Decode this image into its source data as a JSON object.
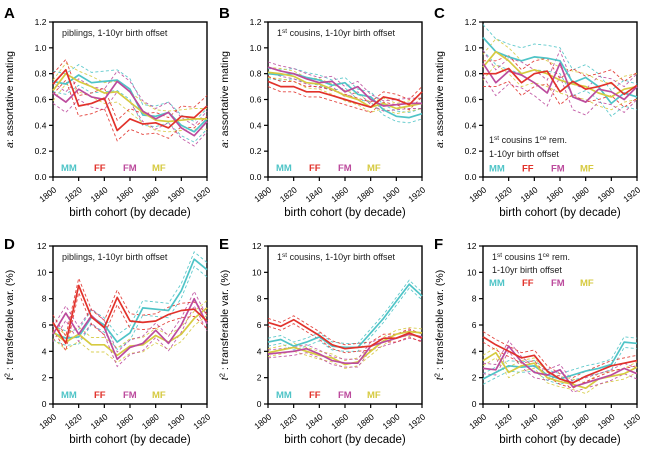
{
  "figure": {
    "background": "#ffffff",
    "axis_color": "#000000",
    "x_label": "birth cohort (by decade)",
    "x_values": [
      1800,
      1810,
      1820,
      1830,
      1840,
      1850,
      1860,
      1870,
      1880,
      1890,
      1900,
      1910,
      1920
    ],
    "x_tick_labels": [
      "1800",
      "1820",
      "1840",
      "1860",
      "1880",
      "1900",
      "1920"
    ],
    "legend_labels": [
      "MM",
      "FF",
      "FM",
      "MF"
    ],
    "series_colors": {
      "MM": "#4FC4C7",
      "FF": "#E1322B",
      "FM": "#BC4B9D",
      "MF": "#D6CA40"
    }
  },
  "chart_data": [
    {
      "type": "line",
      "panel": "A",
      "title_lines": [
        [
          {
            "t": "piblings, 1-10yr birth offset"
          }
        ]
      ],
      "title_position": "top",
      "legend_position": "bottom",
      "ylabel_segments": [
        {
          "t": "a",
          "italic": true
        },
        {
          "t": ": assortative mating"
        }
      ],
      "xlabel": "birth cohort (by decade)",
      "ylim": [
        0,
        1.2
      ],
      "yticks": [
        0,
        0.2,
        0.4,
        0.6,
        0.8,
        1.0,
        1.2
      ],
      "ytick_labels": [
        "0.0",
        "0.2",
        "0.4",
        "0.6",
        "0.8",
        "1.0",
        "1.2"
      ],
      "ci_halfwidth": 0.08,
      "series": [
        {
          "name": "MM",
          "values": [
            0.74,
            0.72,
            0.79,
            0.73,
            0.74,
            0.75,
            0.68,
            0.48,
            0.47,
            0.5,
            0.4,
            0.35,
            0.45
          ]
        },
        {
          "name": "FF",
          "values": [
            0.72,
            0.83,
            0.55,
            0.57,
            0.61,
            0.36,
            0.45,
            0.41,
            0.42,
            0.38,
            0.47,
            0.46,
            0.55
          ]
        },
        {
          "name": "FM",
          "values": [
            0.65,
            0.58,
            0.68,
            0.62,
            0.6,
            0.74,
            0.66,
            0.51,
            0.45,
            0.5,
            0.38,
            0.32,
            0.43
          ]
        },
        {
          "name": "MF",
          "values": [
            0.67,
            0.8,
            0.74,
            0.7,
            0.65,
            0.66,
            0.58,
            0.5,
            0.44,
            0.43,
            0.44,
            0.45,
            0.45
          ]
        }
      ]
    },
    {
      "type": "line",
      "panel": "B",
      "title_lines": [
        [
          {
            "t": "1"
          },
          {
            "t": "st",
            "sup": true
          },
          {
            "t": " cousins, 1-10yr birth offset"
          }
        ]
      ],
      "title_position": "top",
      "legend_position": "bottom",
      "ylabel_segments": [
        {
          "t": "a",
          "italic": true
        },
        {
          "t": ": assortative mating"
        }
      ],
      "xlabel": "birth cohort (by decade)",
      "ylim": [
        0,
        1.2
      ],
      "yticks": [
        0,
        0.2,
        0.4,
        0.6,
        0.8,
        1.0,
        1.2
      ],
      "ytick_labels": [
        "0.0",
        "0.2",
        "0.4",
        "0.6",
        "0.8",
        "1.0",
        "1.2"
      ],
      "ci_halfwidth": 0.04,
      "series": [
        {
          "name": "MM",
          "values": [
            0.8,
            0.79,
            0.8,
            0.77,
            0.75,
            0.71,
            0.73,
            0.64,
            0.62,
            0.52,
            0.47,
            0.46,
            0.49
          ]
        },
        {
          "name": "FF",
          "values": [
            0.74,
            0.7,
            0.7,
            0.66,
            0.66,
            0.63,
            0.6,
            0.57,
            0.54,
            0.62,
            0.6,
            0.56,
            0.66
          ]
        },
        {
          "name": "FM",
          "values": [
            0.85,
            0.82,
            0.8,
            0.76,
            0.73,
            0.74,
            0.66,
            0.7,
            0.6,
            0.55,
            0.56,
            0.57,
            0.57
          ]
        },
        {
          "name": "MF",
          "values": [
            0.81,
            0.8,
            0.78,
            0.73,
            0.72,
            0.68,
            0.63,
            0.6,
            0.54,
            0.57,
            0.53,
            0.55,
            0.57
          ]
        }
      ]
    },
    {
      "type": "line",
      "panel": "C",
      "title_lines": [
        [
          {
            "t": "1"
          },
          {
            "t": "st",
            "sup": true
          },
          {
            "t": " cousins 1"
          },
          {
            "t": "ce",
            "sup": true
          },
          {
            "t": " rem."
          }
        ],
        [
          {
            "t": "1-10yr birth offset"
          }
        ]
      ],
      "title_position": "bottom",
      "legend_position": "bottom",
      "ylabel_segments": [
        {
          "t": "a",
          "italic": true
        },
        {
          "t": ": assortative mating"
        }
      ],
      "xlabel": "birth cohort (by decade)",
      "ylim": [
        0,
        1.2
      ],
      "yticks": [
        0,
        0.2,
        0.4,
        0.6,
        0.8,
        1.0,
        1.2
      ],
      "ytick_labels": [
        "0.0",
        "0.2",
        "0.4",
        "0.6",
        "0.8",
        "1.0",
        "1.2"
      ],
      "ci_halfwidth": 0.1,
      "series": [
        {
          "name": "MM",
          "values": [
            1.08,
            0.97,
            0.93,
            0.9,
            0.93,
            0.92,
            0.9,
            0.73,
            0.77,
            0.7,
            0.57,
            0.65,
            0.62
          ]
        },
        {
          "name": "FF",
          "values": [
            0.8,
            0.8,
            0.84,
            0.73,
            0.8,
            0.82,
            0.66,
            0.74,
            0.68,
            0.7,
            0.73,
            0.64,
            0.71
          ]
        },
        {
          "name": "FM",
          "values": [
            0.88,
            0.73,
            0.82,
            0.79,
            0.73,
            0.65,
            0.88,
            0.62,
            0.58,
            0.68,
            0.66,
            0.6,
            0.7
          ]
        },
        {
          "name": "MF",
          "values": [
            0.85,
            0.97,
            0.9,
            0.8,
            0.83,
            0.8,
            0.75,
            0.72,
            0.7,
            0.65,
            0.62,
            0.68,
            0.7
          ]
        }
      ]
    },
    {
      "type": "line",
      "panel": "D",
      "title_lines": [
        [
          {
            "t": "piblings, 1-10yr birth offset"
          }
        ]
      ],
      "title_position": "top",
      "legend_position": "bottom",
      "ylabel_segments": [
        {
          "t": "t",
          "italic": true
        },
        {
          "t": "2",
          "sup": true
        },
        {
          "t": " : transferable var. (%)"
        }
      ],
      "xlabel": "birth cohort (by decade)",
      "ylim": [
        0,
        12
      ],
      "yticks": [
        0,
        2,
        4,
        6,
        8,
        10,
        12
      ],
      "ytick_labels": [
        "0",
        "2",
        "4",
        "6",
        "8",
        "10",
        "12"
      ],
      "ci_halfwidth": 0.55,
      "series": [
        {
          "name": "MM",
          "values": [
            5.4,
            5.0,
            5.1,
            6.6,
            6.0,
            4.7,
            5.4,
            7.3,
            7.2,
            7.1,
            8.6,
            11.0,
            10.2
          ]
        },
        {
          "name": "FF",
          "values": [
            6.2,
            4.6,
            9.0,
            6.6,
            5.8,
            8.1,
            6.3,
            6.2,
            6.3,
            6.8,
            7.1,
            7.2,
            6.3
          ]
        },
        {
          "name": "FM",
          "values": [
            5.3,
            6.9,
            5.3,
            6.7,
            5.8,
            3.4,
            4.3,
            4.6,
            5.6,
            4.6,
            6.0,
            8.0,
            6.1
          ]
        },
        {
          "name": "MF",
          "values": [
            5.5,
            4.7,
            5.3,
            4.5,
            4.5,
            3.7,
            4.4,
            4.5,
            5.2,
            4.7,
            5.3,
            6.5,
            7.3
          ]
        }
      ]
    },
    {
      "type": "line",
      "panel": "E",
      "title_lines": [
        [
          {
            "t": "1"
          },
          {
            "t": "st",
            "sup": true
          },
          {
            "t": " cousins, 1-10yr birth offset"
          }
        ]
      ],
      "title_position": "top",
      "legend_position": "bottom",
      "ylabel_segments": [
        {
          "t": "t",
          "italic": true
        },
        {
          "t": "2",
          "sup": true
        },
        {
          "t": " : transferable var. (%)"
        }
      ],
      "xlabel": "birth cohort (by decade)",
      "ylim": [
        0,
        12
      ],
      "yticks": [
        0,
        2,
        4,
        6,
        8,
        10,
        12
      ],
      "ytick_labels": [
        "0",
        "2",
        "4",
        "6",
        "8",
        "10",
        "12"
      ],
      "ci_halfwidth": 0.3,
      "series": [
        {
          "name": "MM",
          "values": [
            4.7,
            4.9,
            4.4,
            4.7,
            5.1,
            4.4,
            4.3,
            4.3,
            5.4,
            6.5,
            7.8,
            9.1,
            8.2
          ]
        },
        {
          "name": "FF",
          "values": [
            6.2,
            5.9,
            6.4,
            5.8,
            5.2,
            4.5,
            4.2,
            4.3,
            4.4,
            5.0,
            5.0,
            5.4,
            5.0
          ]
        },
        {
          "name": "FM",
          "values": [
            3.8,
            3.9,
            4.0,
            4.2,
            3.8,
            3.3,
            3.1,
            3.1,
            4.4,
            4.7,
            5.0,
            5.3,
            5.1
          ]
        },
        {
          "name": "MF",
          "values": [
            3.9,
            4.1,
            4.3,
            4.0,
            3.7,
            3.5,
            3.0,
            3.2,
            4.0,
            4.8,
            5.3,
            5.5,
            5.4
          ]
        }
      ]
    },
    {
      "type": "line",
      "panel": "F",
      "title_lines": [
        [
          {
            "t": "1"
          },
          {
            "t": "st",
            "sup": true
          },
          {
            "t": " cousins 1"
          },
          {
            "t": "ce",
            "sup": true
          },
          {
            "t": " rem."
          }
        ],
        [
          {
            "t": "1-10yr birth offset"
          }
        ]
      ],
      "title_position": "top",
      "legend_position": "after-title",
      "ylabel_segments": [
        {
          "t": "t",
          "italic": true
        },
        {
          "t": "2",
          "sup": true
        },
        {
          "t": " : transferable var. (%)"
        }
      ],
      "xlabel": "birth cohort (by decade)",
      "ylim": [
        0,
        12
      ],
      "yticks": [
        0,
        2,
        4,
        6,
        8,
        10,
        12
      ],
      "ytick_labels": [
        "0",
        "2",
        "4",
        "6",
        "8",
        "10",
        "12"
      ],
      "ci_halfwidth": 0.4,
      "series": [
        {
          "name": "MM",
          "values": [
            1.9,
            2.4,
            2.9,
            2.8,
            2.9,
            2.2,
            1.9,
            2.2,
            2.5,
            2.7,
            3.0,
            4.7,
            4.6
          ]
        },
        {
          "name": "FF",
          "values": [
            5.1,
            4.5,
            4.0,
            3.5,
            3.7,
            2.5,
            1.9,
            1.6,
            2.1,
            2.5,
            2.9,
            3.1,
            3.3
          ]
        },
        {
          "name": "FM",
          "values": [
            2.7,
            2.6,
            4.4,
            3.2,
            2.4,
            2.2,
            2.6,
            1.3,
            1.6,
            1.9,
            2.2,
            2.7,
            2.3
          ]
        },
        {
          "name": "MF",
          "values": [
            3.3,
            3.9,
            2.4,
            2.9,
            3.1,
            2.0,
            1.7,
            1.5,
            1.2,
            1.9,
            2.1,
            2.3,
            2.8
          ]
        }
      ]
    }
  ]
}
